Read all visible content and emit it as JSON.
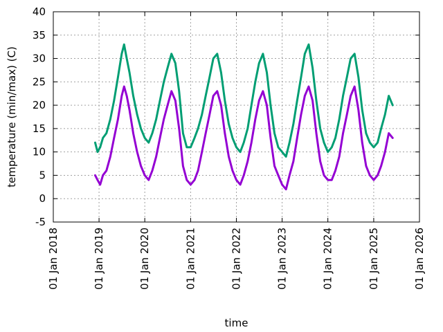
{
  "chart_data": {
    "type": "line",
    "title": "",
    "xlabel": "time",
    "ylabel": "temperature (min/max) (C)",
    "xlim": [
      "2018-01-01",
      "2026-01-01"
    ],
    "ylim": [
      -5,
      40
    ],
    "grid": true,
    "x_tick_labels": [
      "01 Jan 2018",
      "01 Jan 2019",
      "01 Jan 2020",
      "01 Jan 2021",
      "01 Jan 2022",
      "01 Jan 2023",
      "01 Jan 2024",
      "01 Jan 2025",
      "01 Jan 2026"
    ],
    "y_ticks": [
      -5,
      0,
      5,
      10,
      15,
      20,
      25,
      30,
      35,
      40
    ],
    "series": [
      {
        "color": "#009e73",
        "x": [
          "2018-12-01",
          "2018-12-20",
          "2019-01-10",
          "2019-02-01",
          "2019-03-01",
          "2019-04-01",
          "2019-05-01",
          "2019-06-01",
          "2019-07-01",
          "2019-07-20",
          "2019-08-10",
          "2019-09-01",
          "2019-10-01",
          "2019-11-01",
          "2019-12-01",
          "2020-01-01",
          "2020-02-01",
          "2020-03-01",
          "2020-04-01",
          "2020-05-01",
          "2020-06-01",
          "2020-07-01",
          "2020-08-01",
          "2020-09-01",
          "2020-10-01",
          "2020-11-01",
          "2020-12-01",
          "2021-01-01",
          "2021-02-01",
          "2021-03-01",
          "2021-04-01",
          "2021-05-01",
          "2021-06-01",
          "2021-07-01",
          "2021-08-01",
          "2021-09-01",
          "2021-10-01",
          "2021-11-01",
          "2021-12-01",
          "2022-01-01",
          "2022-02-01",
          "2022-03-01",
          "2022-04-01",
          "2022-05-01",
          "2022-06-01",
          "2022-07-01",
          "2022-08-01",
          "2022-09-01",
          "2022-10-01",
          "2022-11-01",
          "2022-12-01",
          "2023-01-01",
          "2023-02-01",
          "2023-03-01",
          "2023-04-01",
          "2023-05-01",
          "2023-06-01",
          "2023-07-01",
          "2023-08-01",
          "2023-09-01",
          "2023-10-01",
          "2023-11-01",
          "2023-12-01",
          "2024-01-01",
          "2024-02-01",
          "2024-03-01",
          "2024-04-01",
          "2024-05-01",
          "2024-06-01",
          "2024-07-01",
          "2024-08-01",
          "2024-09-01",
          "2024-10-01",
          "2024-11-01",
          "2024-12-01",
          "2025-01-01",
          "2025-02-01",
          "2025-03-01",
          "2025-04-01",
          "2025-05-01",
          "2025-06-01"
        ],
        "values": [
          12,
          10,
          11,
          13,
          14,
          17,
          21,
          26,
          31,
          33,
          30,
          27,
          22,
          18,
          15,
          13,
          12,
          14,
          17,
          21,
          25,
          28,
          31,
          29,
          23,
          14,
          11,
          11,
          13,
          15,
          18,
          22,
          26,
          30,
          31,
          27,
          21,
          16,
          13,
          11,
          10,
          12,
          15,
          20,
          25,
          29,
          31,
          27,
          20,
          14,
          11,
          10,
          9,
          12,
          16,
          21,
          26,
          31,
          33,
          28,
          21,
          15,
          12,
          10,
          11,
          13,
          17,
          22,
          26,
          30,
          31,
          26,
          19,
          14,
          12,
          11,
          12,
          15,
          18,
          22,
          20
        ]
      },
      {
        "color": "#9400d3",
        "x": [
          "2018-12-01",
          "2018-12-20",
          "2019-01-10",
          "2019-02-01",
          "2019-03-01",
          "2019-04-01",
          "2019-05-01",
          "2019-06-01",
          "2019-07-01",
          "2019-07-20",
          "2019-08-10",
          "2019-09-01",
          "2019-10-01",
          "2019-11-01",
          "2019-12-01",
          "2020-01-01",
          "2020-02-01",
          "2020-03-01",
          "2020-04-01",
          "2020-05-01",
          "2020-06-01",
          "2020-07-01",
          "2020-08-01",
          "2020-09-01",
          "2020-10-01",
          "2020-11-01",
          "2020-12-01",
          "2021-01-01",
          "2021-02-01",
          "2021-03-01",
          "2021-04-01",
          "2021-05-01",
          "2021-06-01",
          "2021-07-01",
          "2021-08-01",
          "2021-09-01",
          "2021-10-01",
          "2021-11-01",
          "2021-12-01",
          "2022-01-01",
          "2022-02-01",
          "2022-03-01",
          "2022-04-01",
          "2022-05-01",
          "2022-06-01",
          "2022-07-01",
          "2022-08-01",
          "2022-09-01",
          "2022-10-01",
          "2022-11-01",
          "2022-12-01",
          "2023-01-01",
          "2023-02-01",
          "2023-03-01",
          "2023-04-01",
          "2023-05-01",
          "2023-06-01",
          "2023-07-01",
          "2023-08-01",
          "2023-09-01",
          "2023-10-01",
          "2023-11-01",
          "2023-12-01",
          "2024-01-01",
          "2024-02-01",
          "2024-03-01",
          "2024-04-01",
          "2024-05-01",
          "2024-06-01",
          "2024-07-01",
          "2024-08-01",
          "2024-09-01",
          "2024-10-01",
          "2024-11-01",
          "2024-12-01",
          "2025-01-01",
          "2025-02-01",
          "2025-03-01",
          "2025-04-01",
          "2025-05-01",
          "2025-06-01"
        ],
        "values": [
          5,
          4,
          3,
          5,
          6,
          9,
          13,
          17,
          22,
          24,
          22,
          19,
          14,
          10,
          7,
          5,
          4,
          6,
          9,
          13,
          17,
          20,
          23,
          21,
          15,
          7,
          4,
          3,
          4,
          6,
          10,
          14,
          18,
          22,
          23,
          20,
          14,
          9,
          6,
          4,
          3,
          5,
          8,
          12,
          17,
          21,
          23,
          20,
          13,
          7,
          5,
          3,
          2,
          5,
          8,
          13,
          18,
          22,
          24,
          21,
          14,
          8,
          5,
          4,
          4,
          6,
          9,
          14,
          18,
          22,
          24,
          19,
          12,
          7,
          5,
          4,
          5,
          7,
          10,
          14,
          13
        ]
      }
    ]
  }
}
